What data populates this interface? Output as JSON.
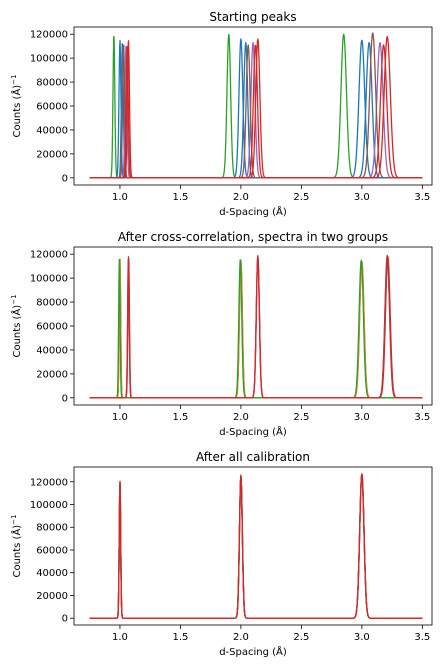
{
  "chart_data": [
    {
      "type": "line",
      "title": "Starting peaks",
      "xlabel": "d-Spacing (Å)",
      "ylabel": "Counts (Å)",
      "ylabel_sup": "−1",
      "xlim": [
        0.62,
        3.58
      ],
      "ylim": [
        -6000,
        126000
      ],
      "xticks": [
        "1.0",
        "1.5",
        "2.0",
        "2.5",
        "3.0",
        "3.5"
      ],
      "yticks": [
        "0",
        "20000",
        "40000",
        "60000",
        "80000",
        "100000",
        "120000"
      ],
      "peak_sigma": 0.008,
      "series": [
        {
          "color": "#2ca02c",
          "peaks": [
            [
              0.95,
              120000
            ],
            [
              1.9,
              120000
            ],
            [
              2.85,
              120000
            ]
          ]
        },
        {
          "color": "#1f77b4",
          "peaks": [
            [
              1.0,
              115000
            ],
            [
              2.0,
              116000
            ],
            [
              3.0,
              115000
            ]
          ]
        },
        {
          "color": "#1f77b4",
          "peaks": [
            [
              1.02,
              113000
            ],
            [
              2.04,
              113000
            ],
            [
              3.06,
              113000
            ]
          ]
        },
        {
          "color": "#9467bd",
          "peaks": [
            [
              1.05,
              110000
            ],
            [
              2.1,
              113000
            ],
            [
              3.15,
              113000
            ]
          ]
        },
        {
          "color": "#8c564b",
          "peaks": [
            [
              1.03,
              112000
            ],
            [
              2.06,
              111000
            ],
            [
              3.09,
              121000
            ]
          ]
        },
        {
          "color": "#d62728",
          "peaks": [
            [
              1.07,
              115000
            ],
            [
              2.14,
              116000
            ],
            [
              3.21,
              118000
            ]
          ]
        },
        {
          "color": "#d62728",
          "peaks": [
            [
              1.06,
              111000
            ],
            [
              2.12,
              111000
            ],
            [
              3.18,
              111000
            ]
          ]
        }
      ]
    },
    {
      "type": "line",
      "title": "After cross-correlation, spectra in two groups",
      "xlabel": "d-Spacing (Å)",
      "ylabel": "Counts (Å)",
      "ylabel_sup": "−1",
      "xlim": [
        0.62,
        3.58
      ],
      "ylim": [
        -6000,
        126000
      ],
      "xticks": [
        "1.0",
        "1.5",
        "2.0",
        "2.5",
        "3.0",
        "3.5"
      ],
      "yticks": [
        "0",
        "20000",
        "40000",
        "60000",
        "80000",
        "100000",
        "120000"
      ],
      "peak_sigma": 0.006,
      "series": [
        {
          "color": "#1f77b4",
          "peaks": [
            [
              1.0,
              116000
            ],
            [
              2.0,
              115000
            ],
            [
              3.0,
              114000
            ]
          ]
        },
        {
          "color": "#ff7f0e",
          "peaks": [
            [
              1.0,
              115000
            ],
            [
              2.0,
              114000
            ],
            [
              3.0,
              114000
            ]
          ]
        },
        {
          "color": "#2ca02c",
          "peaks": [
            [
              0.995,
              116000
            ],
            [
              1.995,
              116000
            ],
            [
              2.995,
              115000
            ]
          ]
        },
        {
          "color": "#9467bd",
          "peaks": [
            [
              1.07,
              119000
            ],
            [
              2.14,
              119000
            ],
            [
              3.21,
              118000
            ]
          ]
        },
        {
          "color": "#8c564b",
          "peaks": [
            [
              1.07,
              118000
            ],
            [
              2.14,
              117000
            ],
            [
              3.21,
              119000
            ]
          ]
        },
        {
          "color": "#d62728",
          "peaks": [
            [
              1.072,
              118000
            ],
            [
              2.14,
              118000
            ],
            [
              3.215,
              118000
            ]
          ]
        }
      ]
    },
    {
      "type": "line",
      "title": "After all calibration",
      "xlabel": "d-Spacing (Å)",
      "ylabel": "Counts (Å)",
      "ylabel_sup": "−1",
      "xlim": [
        0.62,
        3.58
      ],
      "ylim": [
        -6000,
        133000
      ],
      "xticks": [
        "1.0",
        "1.5",
        "2.0",
        "2.5",
        "3.0",
        "3.5"
      ],
      "yticks": [
        "0",
        "20000",
        "40000",
        "60000",
        "80000",
        "100000",
        "120000"
      ],
      "peak_sigma": 0.006,
      "series": [
        {
          "color": "#1f77b4",
          "peaks": [
            [
              1.0,
              118000
            ],
            [
              2.0,
              123000
            ],
            [
              3.0,
              125000
            ]
          ]
        },
        {
          "color": "#ff7f0e",
          "peaks": [
            [
              1.0,
              119000
            ],
            [
              2.0,
              124000
            ],
            [
              3.0,
              126000
            ]
          ]
        },
        {
          "color": "#2ca02c",
          "peaks": [
            [
              1.0,
              120000
            ],
            [
              2.0,
              125000
            ],
            [
              3.0,
              126000
            ]
          ]
        },
        {
          "color": "#9467bd",
          "peaks": [
            [
              1.0,
              120000
            ],
            [
              2.0,
              125000
            ],
            [
              3.0,
              127000
            ]
          ]
        },
        {
          "color": "#8c564b",
          "peaks": [
            [
              1.0,
              121000
            ],
            [
              2.0,
              126000
            ],
            [
              3.0,
              127000
            ]
          ]
        },
        {
          "color": "#d62728",
          "peaks": [
            [
              1.0,
              120000
            ],
            [
              2.0,
              125000
            ],
            [
              3.0,
              127000
            ]
          ]
        }
      ]
    }
  ]
}
